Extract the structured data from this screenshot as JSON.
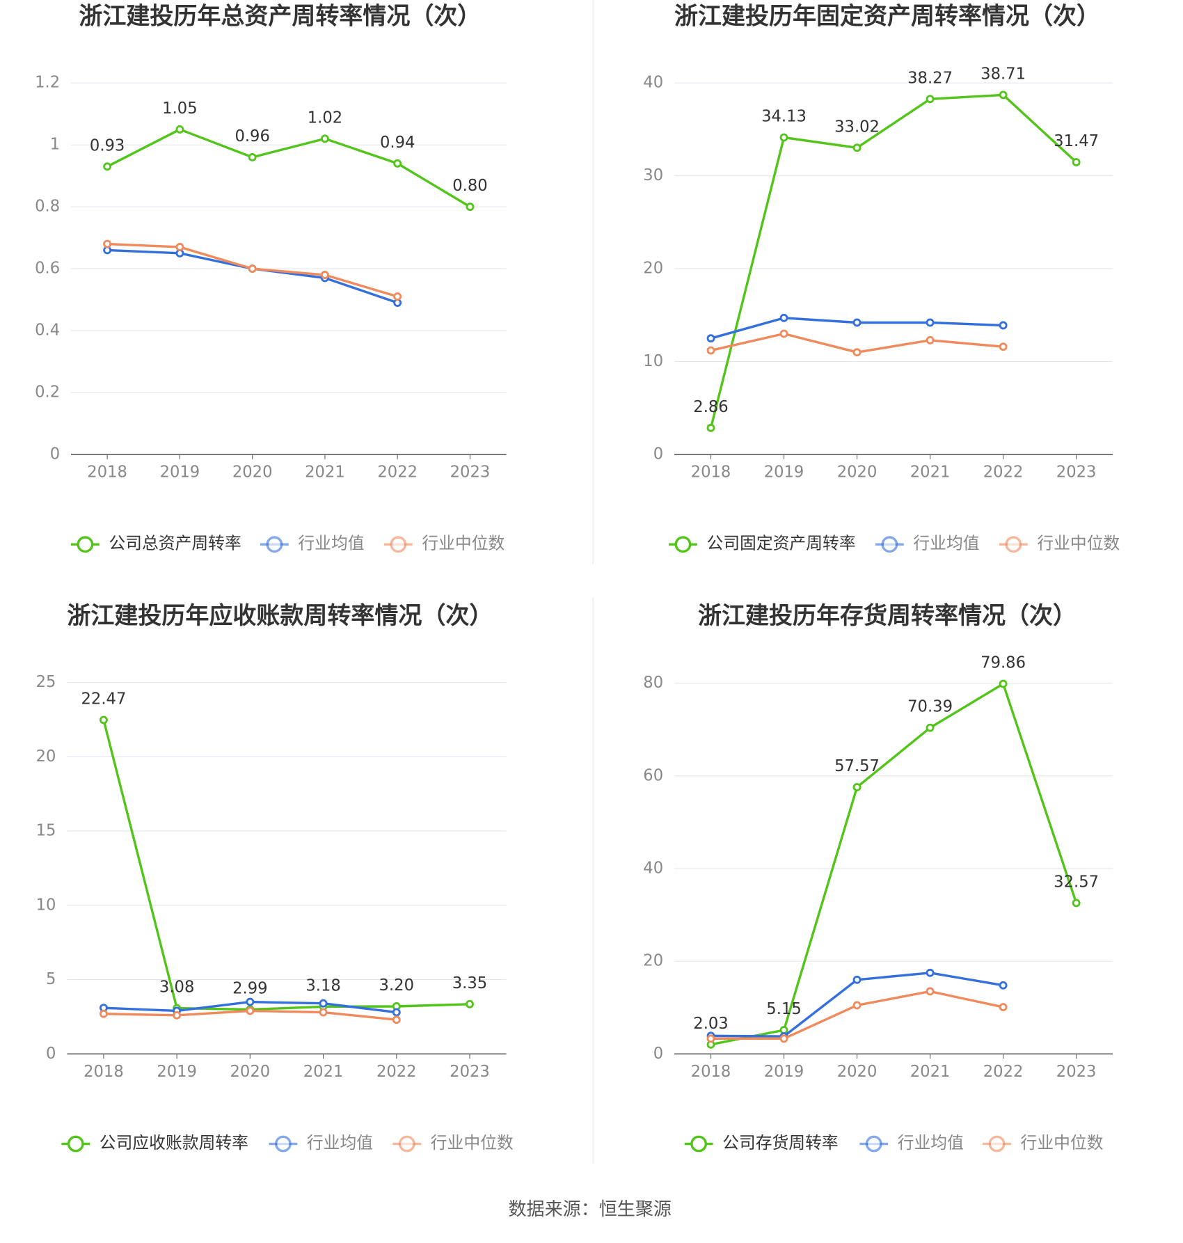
{
  "chart_data": [
    {
      "type": "line",
      "title": "浙江建投历年总资产周转率情况（次）",
      "categories": [
        "2018",
        "2019",
        "2020",
        "2021",
        "2022",
        "2023"
      ],
      "series": [
        {
          "name": "公司总资产周转率",
          "color": "#52c41a",
          "values": [
            0.93,
            1.05,
            0.96,
            1.02,
            0.94,
            0.8
          ],
          "value_labels": [
            "0.93",
            "1.05",
            "0.96",
            "1.02",
            "0.94",
            "0.80"
          ]
        },
        {
          "name": "行业均值",
          "color": "#3370dd",
          "values": [
            0.66,
            0.65,
            0.6,
            0.57,
            0.49,
            null
          ]
        },
        {
          "name": "行业中位数",
          "color": "#f08a5d",
          "values": [
            0.68,
            0.67,
            0.6,
            0.58,
            0.51,
            null
          ]
        }
      ],
      "ylim": [
        0,
        1.2
      ],
      "yticks": [
        0,
        0.2,
        0.4,
        0.6,
        0.8,
        1,
        1.2
      ],
      "grid": true
    },
    {
      "type": "line",
      "title": "浙江建投历年固定资产周转率情况（次）",
      "categories": [
        "2018",
        "2019",
        "2020",
        "2021",
        "2022",
        "2023"
      ],
      "series": [
        {
          "name": "公司固定资产周转率",
          "color": "#52c41a",
          "values": [
            2.86,
            34.13,
            33.02,
            38.27,
            38.71,
            31.47
          ]
        },
        {
          "name": "行业均值",
          "color": "#3370dd",
          "values": [
            12.5,
            14.7,
            14.2,
            14.2,
            13.9,
            null
          ]
        },
        {
          "name": "行业中位数",
          "color": "#f08a5d",
          "values": [
            11.2,
            13.0,
            11.0,
            12.3,
            11.6,
            null
          ]
        }
      ],
      "ylim": [
        0,
        40
      ],
      "yticks": [
        0,
        10,
        20,
        30,
        40
      ],
      "grid": true
    },
    {
      "type": "line",
      "title": "浙江建投历年应收账款周转率情况（次）",
      "categories": [
        "2018",
        "2019",
        "2020",
        "2021",
        "2022",
        "2023"
      ],
      "series": [
        {
          "name": "公司应收账款周转率",
          "color": "#52c41a",
          "values": [
            22.47,
            3.08,
            2.99,
            3.18,
            3.2,
            3.35
          ],
          "value_labels": [
            "22.47",
            "3.08",
            "2.99",
            "3.18",
            "3.20",
            "3.35"
          ]
        },
        {
          "name": "行业均值",
          "color": "#3370dd",
          "values": [
            3.1,
            2.9,
            3.5,
            3.4,
            2.8,
            null
          ]
        },
        {
          "name": "行业中位数",
          "color": "#f08a5d",
          "values": [
            2.7,
            2.6,
            2.9,
            2.8,
            2.3,
            null
          ]
        }
      ],
      "ylim": [
        0,
        25
      ],
      "yticks": [
        0,
        5,
        10,
        15,
        20,
        25
      ],
      "grid": true
    },
    {
      "type": "line",
      "title": "浙江建投历年存货周转率情况（次）",
      "categories": [
        "2018",
        "2019",
        "2020",
        "2021",
        "2022",
        "2023"
      ],
      "series": [
        {
          "name": "公司存货周转率",
          "color": "#52c41a",
          "values": [
            2.03,
            5.15,
            57.57,
            70.39,
            79.86,
            32.57
          ]
        },
        {
          "name": "行业均值",
          "color": "#3370dd",
          "values": [
            3.9,
            3.8,
            16.0,
            17.5,
            14.8,
            null
          ]
        },
        {
          "name": "行业中位数",
          "color": "#f08a5d",
          "values": [
            3.3,
            3.3,
            10.5,
            13.5,
            10.1,
            null
          ]
        }
      ],
      "ylim": [
        0,
        80
      ],
      "yticks": [
        0,
        20,
        40,
        60,
        80
      ],
      "grid": true
    }
  ],
  "source": "数据来源：恒生聚源"
}
